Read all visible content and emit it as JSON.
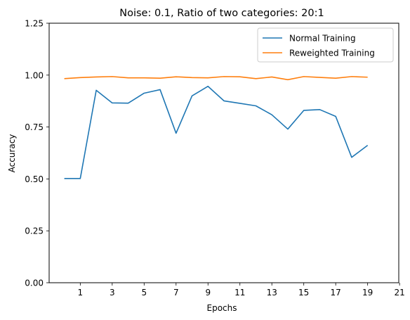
{
  "chart_data": {
    "type": "line",
    "title": "Noise: 0.1, Ratio of two categories: 20:1",
    "xlabel": "Epochs",
    "ylabel": "Accuracy",
    "xlim": [
      -0.95,
      20.95
    ],
    "ylim": [
      0.0,
      1.25
    ],
    "x_ticks": [
      1,
      3,
      5,
      7,
      9,
      11,
      13,
      15,
      17,
      19,
      21
    ],
    "y_ticks": [
      0.0,
      0.25,
      0.5,
      0.75,
      1.0,
      1.25
    ],
    "y_tick_labels": [
      "0.00",
      "0.25",
      "0.50",
      "0.75",
      "1.00",
      "1.25"
    ],
    "x": [
      0,
      1,
      2,
      3,
      4,
      5,
      6,
      7,
      8,
      9,
      10,
      11,
      12,
      13,
      14,
      15,
      16,
      17,
      18,
      19
    ],
    "series": [
      {
        "name": "Normal Training",
        "color": "#1f77b4",
        "values": [
          0.502,
          0.502,
          0.927,
          0.866,
          0.865,
          0.913,
          0.93,
          0.72,
          0.9,
          0.946,
          0.876,
          0.864,
          0.852,
          0.809,
          0.74,
          0.83,
          0.834,
          0.801,
          0.604,
          0.662
        ]
      },
      {
        "name": "Reweighted Training",
        "color": "#ff7f0e",
        "values": [
          0.983,
          0.988,
          0.991,
          0.993,
          0.987,
          0.987,
          0.985,
          0.992,
          0.988,
          0.987,
          0.993,
          0.992,
          0.983,
          0.991,
          0.978,
          0.993,
          0.989,
          0.985,
          0.993,
          0.99
        ]
      }
    ],
    "grid": false,
    "legend_position": "top-right"
  }
}
